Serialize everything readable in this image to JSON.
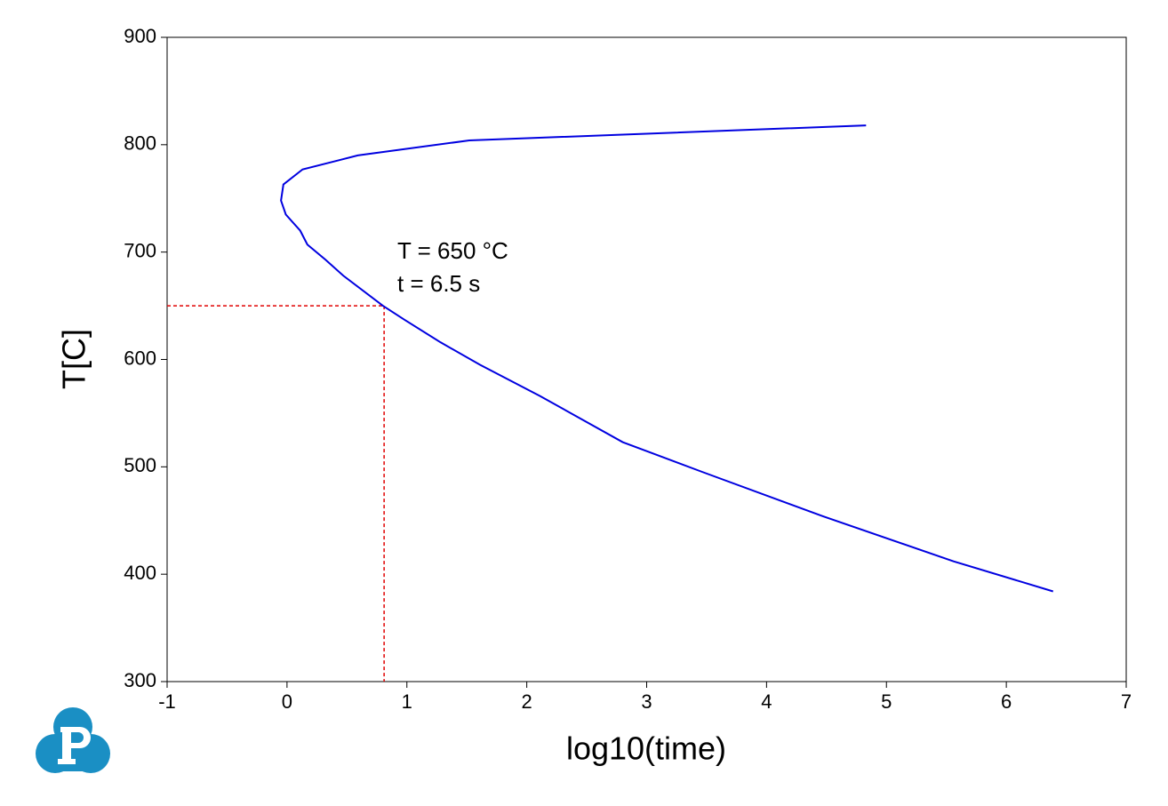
{
  "chart_data": {
    "type": "line",
    "xlabel": "log10(time)",
    "ylabel": "T[C]",
    "xlim": [
      -1,
      7
    ],
    "xticks": [
      -1,
      0,
      1,
      2,
      3,
      4,
      5,
      6,
      7
    ],
    "ylim": [
      300,
      900
    ],
    "yticks": [
      300,
      400,
      500,
      600,
      700,
      800,
      900
    ],
    "series": [
      {
        "color": "#0000e0",
        "x": [
          4.83,
          1.52,
          0.59,
          0.13,
          -0.03,
          -0.05,
          -0.01,
          0.11,
          0.17,
          0.32,
          0.47,
          0.8,
          0.98,
          1.28,
          1.61,
          2.11,
          2.8,
          3.47,
          4.47,
          5.56,
          6.39
        ],
        "values": [
          818,
          804,
          790,
          777,
          763,
          748,
          735,
          720,
          707,
          693,
          678,
          650,
          637,
          616,
          595,
          566,
          523,
          495,
          454,
          412,
          384
        ]
      }
    ],
    "reference": {
      "x": 0.81,
      "y": 650,
      "color": "#e00000"
    },
    "annotations": [
      "T = 650 °C",
      "t = 6.5 s"
    ]
  }
}
